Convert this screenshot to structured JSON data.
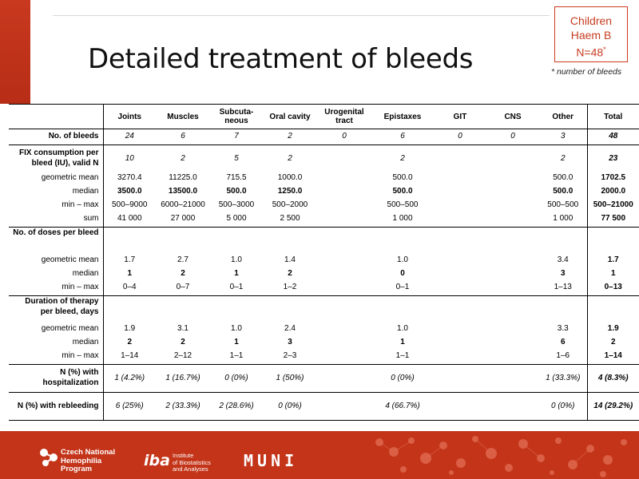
{
  "title": "Detailed treatment of bleeds",
  "badge": {
    "line1": "Children",
    "line2": "Haem B",
    "line3": "N=48",
    "mark": "*"
  },
  "footnote": "* number of bleeds",
  "columns": [
    "Joints",
    "Muscles",
    "Subcuta-neous",
    "Oral cavity",
    "Urogenital tract",
    "Epistaxes",
    "GIT",
    "CNS",
    "Other",
    "Total"
  ],
  "rows": {
    "nbleeds": {
      "label": "No. of bleeds",
      "vals": [
        "24",
        "6",
        "7",
        "2",
        "0",
        "6",
        "0",
        "0",
        "3",
        "48"
      ]
    },
    "fix": {
      "label": "FIX consumption per bleed (IU), valid N",
      "vals": [
        "10",
        "2",
        "5",
        "2",
        "",
        "2",
        "",
        "",
        "2",
        "23"
      ]
    },
    "fix_gm": {
      "label": "geometric mean",
      "vals": [
        "3270.4",
        "11225.0",
        "715.5",
        "1000.0",
        "",
        "500.0",
        "",
        "",
        "500.0",
        "1702.5"
      ]
    },
    "fix_med": {
      "label": "median",
      "vals": [
        "3500.0",
        "13500.0",
        "500.0",
        "1250.0",
        "",
        "500.0",
        "",
        "",
        "500.0",
        "2000.0"
      ]
    },
    "fix_mm": {
      "label": "min – max",
      "vals": [
        "500–9000",
        "6000–21000",
        "500–3000",
        "500–2000",
        "",
        "500–500",
        "",
        "",
        "500–500",
        "500–21000"
      ]
    },
    "fix_sum": {
      "label": "sum",
      "vals": [
        "41 000",
        "27 000",
        "5 000",
        "2 500",
        "",
        "1 000",
        "",
        "",
        "1 000",
        "77 500"
      ]
    },
    "doses": {
      "label": "No. of doses per bleed"
    },
    "dose_gm": {
      "label": "geometric mean",
      "vals": [
        "1.7",
        "2.7",
        "1.0",
        "1.4",
        "",
        "1.0",
        "",
        "",
        "3.4",
        "1.7"
      ]
    },
    "dose_med": {
      "label": "median",
      "vals": [
        "1",
        "2",
        "1",
        "2",
        "",
        "0",
        "",
        "",
        "3",
        "1"
      ]
    },
    "dose_mm": {
      "label": "min – max",
      "vals": [
        "0–4",
        "0–7",
        "0–1",
        "1–2",
        "",
        "0–1",
        "",
        "",
        "1–13",
        "0–13"
      ]
    },
    "dur": {
      "label": "Duration of therapy per bleed, days"
    },
    "dur_gm": {
      "label": "geometric mean",
      "vals": [
        "1.9",
        "3.1",
        "1.0",
        "2.4",
        "",
        "1.0",
        "",
        "",
        "3.3",
        "1.9"
      ]
    },
    "dur_med": {
      "label": "median",
      "vals": [
        "2",
        "2",
        "1",
        "3",
        "",
        "1",
        "",
        "",
        "6",
        "2"
      ]
    },
    "dur_mm": {
      "label": "min – max",
      "vals": [
        "1–14",
        "2–12",
        "1–1",
        "2–3",
        "",
        "1–1",
        "",
        "",
        "1–6",
        "1–14"
      ]
    },
    "hosp": {
      "label": "N (%) with hospitalization",
      "vals": [
        "1 (4.2%)",
        "1 (16.7%)",
        "0 (0%)",
        "1 (50%)",
        "",
        "0 (0%)",
        "",
        "",
        "1 (33.3%)",
        "4 (8.3%)"
      ]
    },
    "rebl": {
      "label": "N (%) with rebleeding",
      "vals": [
        "6 (25%)",
        "2 (33.3%)",
        "2 (28.6%)",
        "0 (0%)",
        "",
        "4 (66.7%)",
        "",
        "",
        "0 (0%)",
        "14 (29.2%)"
      ]
    }
  },
  "footer": {
    "cnhp": [
      "Czech National",
      "Hemophilia",
      "Program"
    ],
    "iba": "iba",
    "iba_sub": [
      "Institute",
      "of Biostatistics",
      "and Analyses"
    ],
    "muni": "MUNI"
  },
  "colors": {
    "accent": "#c33419",
    "badge_text": "#c63c20"
  }
}
